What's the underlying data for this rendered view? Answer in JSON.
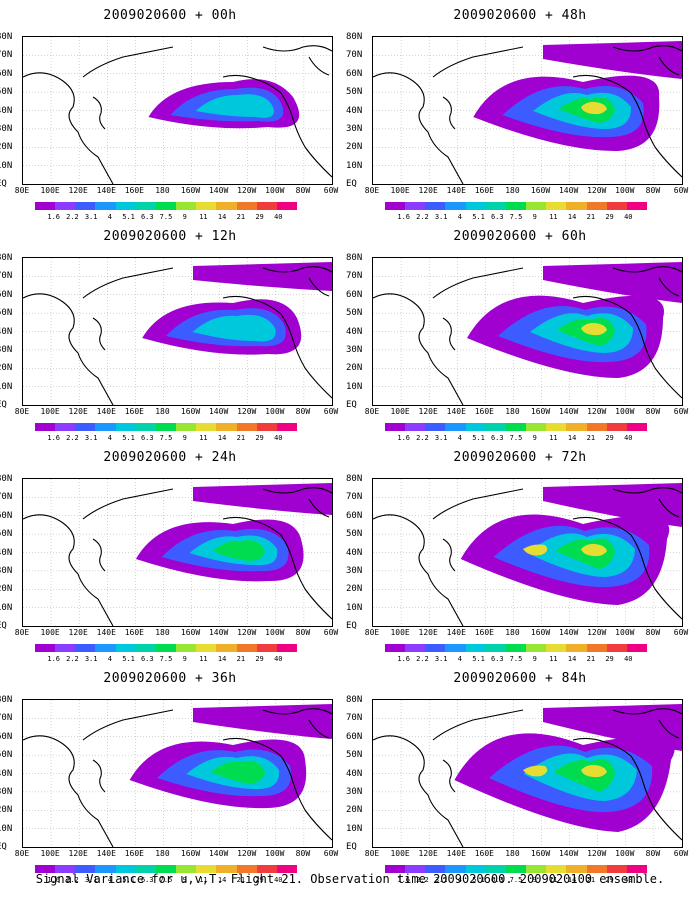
{
  "panels": [
    {
      "title": "2009020600 + 00h",
      "level": 0
    },
    {
      "title": "2009020600 + 48h",
      "level": 4
    },
    {
      "title": "2009020600 + 12h",
      "level": 1
    },
    {
      "title": "2009020600 + 60h",
      "level": 5
    },
    {
      "title": "2009020600 + 24h",
      "level": 2
    },
    {
      "title": "2009020600 + 72h",
      "level": 6
    },
    {
      "title": "2009020600 + 36h",
      "level": 3
    },
    {
      "title": "2009020600 + 84h",
      "level": 7
    }
  ],
  "lat_labels": [
    "80N",
    "70N",
    "60N",
    "50N",
    "40N",
    "30N",
    "20N",
    "10N",
    "EQ"
  ],
  "lon_labels": [
    "80E",
    "100E",
    "120E",
    "140E",
    "160E",
    "180",
    "160W",
    "140W",
    "120W",
    "100W",
    "80W",
    "60W"
  ],
  "colorbar": {
    "ticks": [
      "1.6",
      "2.2",
      "3.1",
      "4",
      "5.1",
      "6.3",
      "7.5",
      "9",
      "11",
      "14",
      "21",
      "29",
      "40"
    ],
    "colors": [
      "#a000d0",
      "#8c3cff",
      "#3c5cff",
      "#1e96ff",
      "#00c8dc",
      "#00d2aa",
      "#00dc50",
      "#96e632",
      "#e6dc32",
      "#f0af28",
      "#f07828",
      "#f03c3c",
      "#f00082"
    ]
  },
  "caption": "Signal Variance for u,v,T. Flight 21. Observation time 2009020600. 2009020100 ensemble."
}
